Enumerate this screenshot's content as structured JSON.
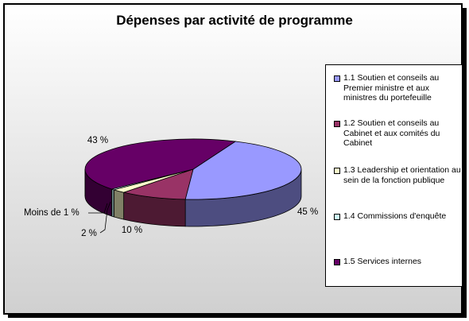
{
  "chart_data": {
    "type": "pie",
    "title": "Dépenses par activité de programme",
    "slices": [
      {
        "label": "1.1 Soutien et conseils au Premier ministre et aux ministres du portefeuille",
        "value": 45,
        "display": "45 %",
        "color": "#9999ff"
      },
      {
        "label": "1.2 Soutien et conseils au Cabinet et aux comités du Cabinet",
        "value": 10,
        "display": "10 %",
        "color": "#993366"
      },
      {
        "label": "1.3 Leadership et orientation au sein de la fonction publique",
        "value": 2,
        "display": "2 %",
        "color": "#ffffcc"
      },
      {
        "label": "1.4 Commissions d'enquête",
        "value": 0.5,
        "display": "Moins de 1 %",
        "color": "#ccffff"
      },
      {
        "label": "1.5 Services internes",
        "value": 43,
        "display": "43 %",
        "color": "#660066"
      }
    ],
    "legend_position": "right"
  }
}
